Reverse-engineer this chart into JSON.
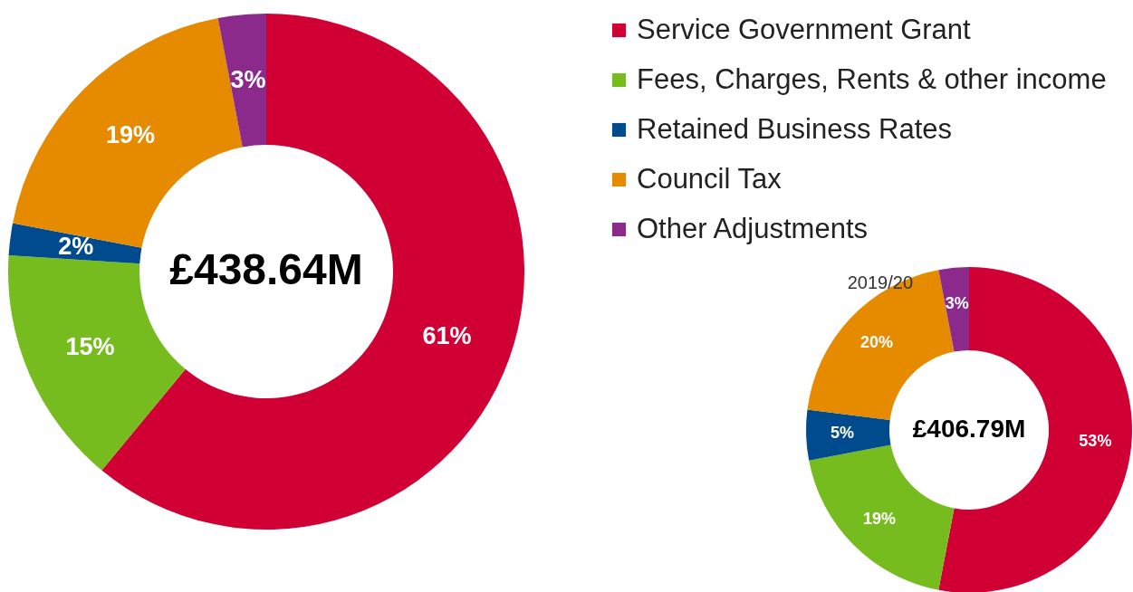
{
  "chart_data": [
    {
      "type": "donut",
      "categories": [
        "Service Government Grant",
        "Fees, Charges, Rents & other income",
        "Retained Business Rates",
        "Council Tax",
        "Other Adjustments"
      ],
      "values": [
        61,
        15,
        2,
        19,
        3
      ],
      "colors": [
        "#d10034",
        "#77bc1f",
        "#004b8d",
        "#e68a00",
        "#8b2a8b"
      ],
      "value_labels": [
        "61%",
        "15%",
        "2%",
        "19%",
        "3%"
      ],
      "annotations": [
        "£438.64M"
      ],
      "legend": "right"
    },
    {
      "type": "donut",
      "title": "2019/20",
      "categories": [
        null,
        null,
        null,
        null,
        null
      ],
      "values": [
        53,
        19,
        5,
        20,
        3
      ],
      "colors": [
        "#d10034",
        "#77bc1f",
        "#004b8d",
        "#e68a00",
        "#8b2a8b"
      ],
      "value_labels": [
        "53%",
        "19%",
        "5%",
        "20%",
        "3%"
      ],
      "annotations": [
        "£406.79M"
      ]
    }
  ]
}
